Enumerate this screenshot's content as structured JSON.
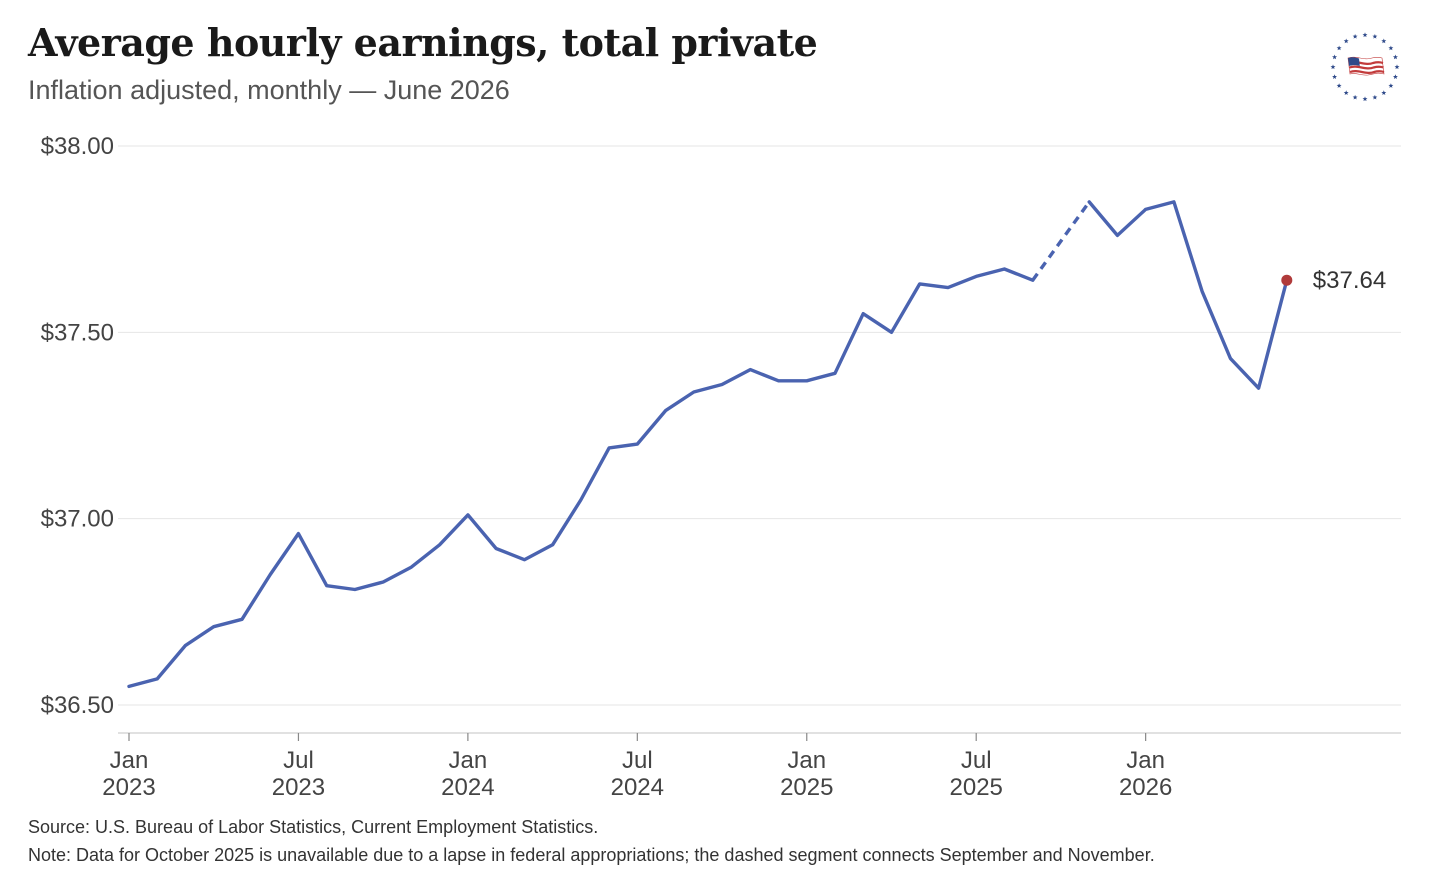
{
  "colors": {
    "line": "#4a63b0",
    "endpoint": "#b03a3a",
    "grid": "#e6e6e6",
    "axis": "#cfcfcf"
  },
  "logo": {
    "icon": "us-flag-star-ring-icon"
  },
  "chart_data": {
    "type": "line",
    "title": "Average hourly earnings, total private",
    "subtitle": "Inflation adjusted, monthly — June 2026",
    "ylim": [
      36.45,
      38.05
    ],
    "xlim": [
      "2023-01",
      "2026-12"
    ],
    "y_ticks": [
      {
        "value": 38.0,
        "label": "$38.00"
      },
      {
        "value": 37.5,
        "label": "$37.50"
      },
      {
        "value": 37.0,
        "label": "$37.00"
      },
      {
        "value": 36.5,
        "label": "$36.50"
      }
    ],
    "x_ticks": [
      {
        "date": "2023-01",
        "line1": "Jan",
        "line2": "2023"
      },
      {
        "date": "2023-07",
        "line1": "Jul",
        "line2": "2023"
      },
      {
        "date": "2024-01",
        "line1": "Jan",
        "line2": "2024"
      },
      {
        "date": "2024-07",
        "line1": "Jul",
        "line2": "2024"
      },
      {
        "date": "2025-01",
        "line1": "Jan",
        "line2": "2025"
      },
      {
        "date": "2025-07",
        "line1": "Jul",
        "line2": "2025"
      },
      {
        "date": "2026-01",
        "line1": "Jan",
        "line2": "2026"
      }
    ],
    "grid": true,
    "series": [
      {
        "points": [
          {
            "x": "2023-01",
            "y": 36.55
          },
          {
            "x": "2023-02",
            "y": 36.57
          },
          {
            "x": "2023-03",
            "y": 36.66
          },
          {
            "x": "2023-04",
            "y": 36.71
          },
          {
            "x": "2023-05",
            "y": 36.73
          },
          {
            "x": "2023-06",
            "y": 36.85
          },
          {
            "x": "2023-07",
            "y": 36.96
          },
          {
            "x": "2023-08",
            "y": 36.82
          },
          {
            "x": "2023-09",
            "y": 36.81
          },
          {
            "x": "2023-10",
            "y": 36.83
          },
          {
            "x": "2023-11",
            "y": 36.87
          },
          {
            "x": "2023-12",
            "y": 36.93
          },
          {
            "x": "2024-01",
            "y": 37.01
          },
          {
            "x": "2024-02",
            "y": 36.92
          },
          {
            "x": "2024-03",
            "y": 36.89
          },
          {
            "x": "2024-04",
            "y": 36.93
          },
          {
            "x": "2024-05",
            "y": 37.05
          },
          {
            "x": "2024-06",
            "y": 37.19
          },
          {
            "x": "2024-07",
            "y": 37.2
          },
          {
            "x": "2024-08",
            "y": 37.29
          },
          {
            "x": "2024-09",
            "y": 37.34
          },
          {
            "x": "2024-10",
            "y": 37.36
          },
          {
            "x": "2024-11",
            "y": 37.4
          },
          {
            "x": "2024-12",
            "y": 37.37
          },
          {
            "x": "2025-01",
            "y": 37.37
          },
          {
            "x": "2025-02",
            "y": 37.39
          },
          {
            "x": "2025-03",
            "y": 37.55
          },
          {
            "x": "2025-04",
            "y": 37.5
          },
          {
            "x": "2025-05",
            "y": 37.63
          },
          {
            "x": "2025-06",
            "y": 37.62
          },
          {
            "x": "2025-07",
            "y": 37.65
          },
          {
            "x": "2025-08",
            "y": 37.67
          },
          {
            "x": "2025-09",
            "y": 37.64
          },
          {
            "x": "2025-11",
            "y": 37.85
          },
          {
            "x": "2025-12",
            "y": 37.76
          },
          {
            "x": "2026-01",
            "y": 37.83
          },
          {
            "x": "2026-02",
            "y": 37.85
          },
          {
            "x": "2026-03",
            "y": 37.61
          },
          {
            "x": "2026-04",
            "y": 37.43
          },
          {
            "x": "2026-05",
            "y": 37.35
          },
          {
            "x": "2026-06",
            "y": 37.64
          }
        ],
        "missing": [
          "2025-10"
        ]
      }
    ],
    "end_label": "$37.64"
  },
  "footer": {
    "source": "Source: U.S. Bureau of Labor Statistics, Current Employment Statistics.",
    "note": "Note: Data for October 2025 is unavailable due to a lapse in federal appropriations; the dashed segment connects September and November."
  }
}
